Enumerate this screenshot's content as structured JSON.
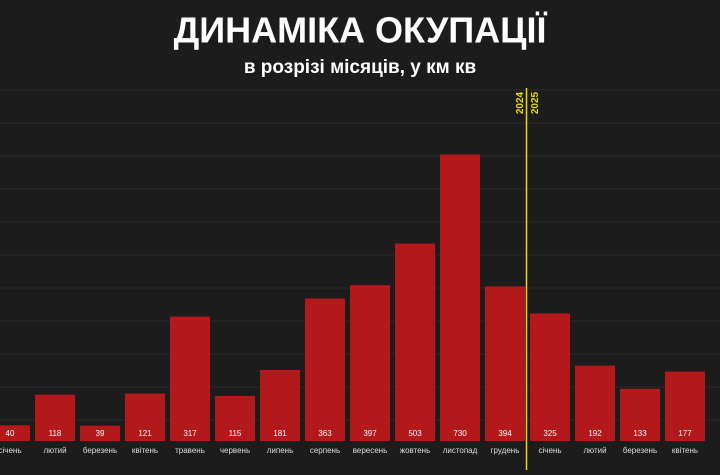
{
  "chart_data": {
    "type": "bar",
    "title": "ДИНАМІКА ОКУПАЦІЇ",
    "subtitle": "в розрізі місяців, у км кв",
    "categories": [
      "січень",
      "лютий",
      "березень",
      "квітень",
      "травень",
      "червень",
      "липень",
      "серпень",
      "вересень",
      "жовтень",
      "листопад",
      "грудень",
      "січень",
      "лютий",
      "березень",
      "квітень"
    ],
    "values": [
      40,
      118,
      39,
      121,
      317,
      115,
      181,
      363,
      397,
      503,
      730,
      394,
      325,
      192,
      133,
      177
    ],
    "color": "#b3181b",
    "ylim": [
      0,
      800
    ],
    "year_labels": [
      "2024",
      "2025"
    ]
  }
}
